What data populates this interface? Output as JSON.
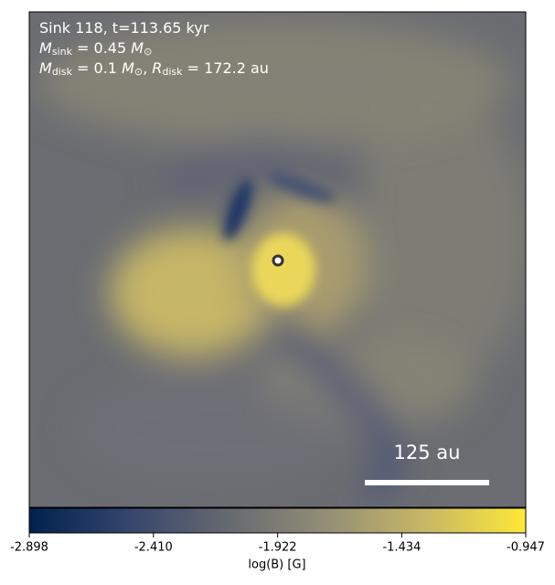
{
  "chart_data": {
    "type": "image",
    "annotations": [
      [
        {
          "text": "Sink 118, t=113.65 kyr"
        }
      ],
      [
        {
          "text": "M",
          "italic": true
        },
        {
          "text": "sink",
          "sub": true
        },
        {
          "text": " = 0.45 "
        },
        {
          "text": "M",
          "italic": true
        },
        {
          "text": "⊙",
          "sub": true
        }
      ],
      [
        {
          "text": "M",
          "italic": true
        },
        {
          "text": "disk",
          "sub": true
        },
        {
          "text": " = 0.1 "
        },
        {
          "text": "M",
          "italic": true
        },
        {
          "text": "⊙",
          "sub": true
        },
        {
          "text": ", "
        },
        {
          "text": "R",
          "italic": true
        },
        {
          "text": "disk",
          "sub": true
        },
        {
          "text": " = 172.2 au"
        }
      ]
    ],
    "scale_bar_label": "125 au",
    "colorbar": {
      "label": "log(B) [G]",
      "lim": [
        -2.898,
        -0.947
      ],
      "ticks": [
        -2.898,
        {
          "value": -2.41,
          "label": "-2.410"
        },
        -1.922,
        -1.434,
        -0.947
      ],
      "colors": [
        "#00224e",
        "#35456c",
        "#666970",
        "#948e77",
        "#c8b866",
        "#fee838"
      ]
    }
  }
}
